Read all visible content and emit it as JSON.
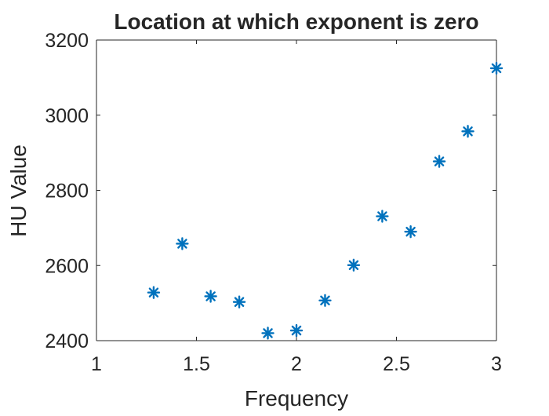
{
  "chart_data": {
    "type": "scatter",
    "title": "Location at which exponent is zero",
    "xlabel": "Frequency",
    "ylabel": "HU Value",
    "xlim": [
      1,
      3
    ],
    "ylim": [
      2400,
      3200
    ],
    "xticks": [
      1,
      1.5,
      2,
      2.5,
      3
    ],
    "xtick_labels": [
      "1",
      "1.5",
      "2",
      "2.5",
      "3"
    ],
    "yticks": [
      2400,
      2600,
      2800,
      3000,
      3200
    ],
    "ytick_labels": [
      "2400",
      "2600",
      "2800",
      "3000",
      "3200"
    ],
    "marker": "asterisk",
    "marker_color": "#0072BD",
    "grid": false,
    "series": [
      {
        "x": [
          1.286,
          1.429,
          1.571,
          1.714,
          1.857,
          2.0,
          2.143,
          2.286,
          2.429,
          2.571,
          2.714,
          2.857,
          3.0
        ],
        "y": [
          2528,
          2658,
          2518,
          2503,
          2420,
          2427,
          2507,
          2601,
          2731,
          2690,
          2877,
          2957,
          3125
        ]
      }
    ]
  }
}
